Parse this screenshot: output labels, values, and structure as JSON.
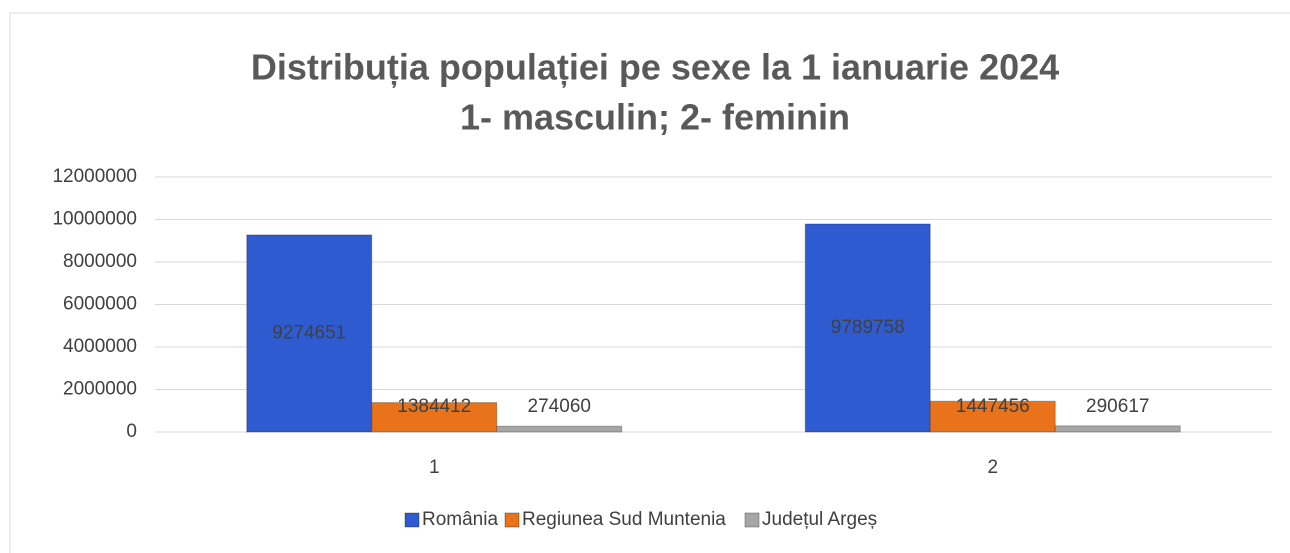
{
  "chart_data": {
    "type": "bar",
    "title": "Distribuția populației pe sexe la 1 ianuarie 2024",
    "subtitle": "1- masculin; 2- feminin",
    "categories": [
      "1",
      "2"
    ],
    "series": [
      {
        "name": "România",
        "color": "#2e5bd0",
        "values": [
          9274651,
          9789758
        ]
      },
      {
        "name": "Regiunea Sud Muntenia",
        "color": "#e8731a",
        "values": [
          1384412,
          1447456
        ]
      },
      {
        "name": "Județul Argeș",
        "color": "#a6a6a6",
        "values": [
          274060,
          290617
        ]
      }
    ],
    "ylim": [
      0,
      12000000
    ],
    "yticks": [
      0,
      2000000,
      4000000,
      6000000,
      8000000,
      10000000,
      12000000
    ],
    "grid": true,
    "legend": "bottom"
  }
}
